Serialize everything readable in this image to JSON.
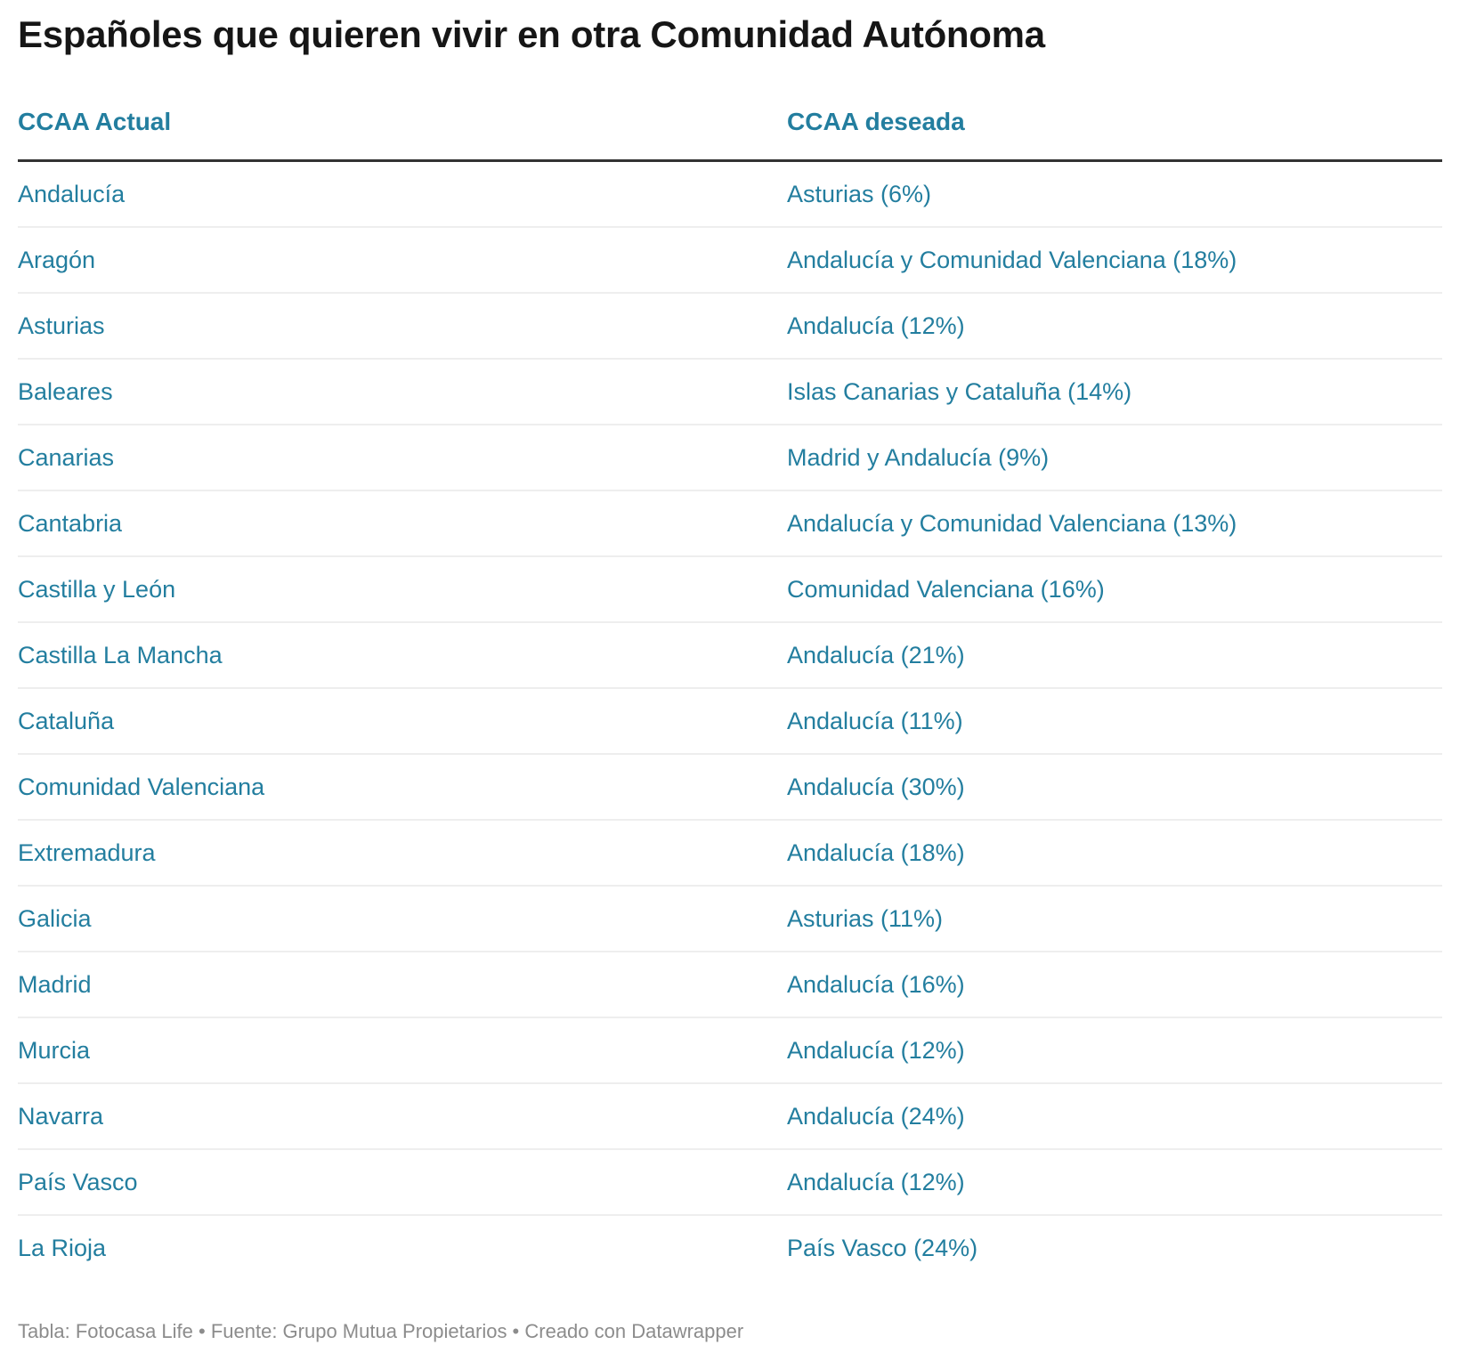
{
  "title": "Españoles que quieren vivir en otra Comunidad Autónoma",
  "colors": {
    "accent": "#237e9f",
    "title_text": "#161616",
    "header_rule": "#333333",
    "row_rule": "#eeeeee",
    "footer_text": "#8c8c8c",
    "background": "#ffffff"
  },
  "chart_data": {
    "type": "table",
    "title": "Españoles que quieren vivir en otra Comunidad Autónoma",
    "columns": [
      "CCAA Actual",
      "CCAA deseada"
    ],
    "rows": [
      [
        "Andalucía",
        "Asturias (6%)"
      ],
      [
        "Aragón",
        "Andalucía y Comunidad Valenciana (18%)"
      ],
      [
        "Asturias",
        "Andalucía (12%)"
      ],
      [
        "Baleares",
        "Islas Canarias y Cataluña (14%)"
      ],
      [
        "Canarias",
        "Madrid y Andalucía (9%)"
      ],
      [
        "Cantabria",
        "Andalucía y Comunidad Valenciana (13%)"
      ],
      [
        "Castilla y León",
        "Comunidad Valenciana (16%)"
      ],
      [
        "Castilla La Mancha",
        "Andalucía (21%)"
      ],
      [
        "Cataluña",
        "Andalucía (11%)"
      ],
      [
        "Comunidad Valenciana",
        "Andalucía (30%)"
      ],
      [
        "Extremadura",
        "Andalucía (18%)"
      ],
      [
        "Galicia",
        "Asturias (11%)"
      ],
      [
        "Madrid",
        "Andalucía (16%)"
      ],
      [
        "Murcia",
        "Andalucía (12%)"
      ],
      [
        "Navarra",
        "Andalucía (24%)"
      ],
      [
        "País Vasco",
        "Andalucía (12%)"
      ],
      [
        "La Rioja",
        "País Vasco (24%)"
      ]
    ],
    "layout": {
      "legend": "none",
      "grid": "horizontal row separators",
      "header_alignment": "left",
      "cell_alignment": "left"
    }
  },
  "footer": {
    "text": "Tabla: Fotocasa Life • Fuente: Grupo Mutua Propietarios • Creado con Datawrapper"
  }
}
